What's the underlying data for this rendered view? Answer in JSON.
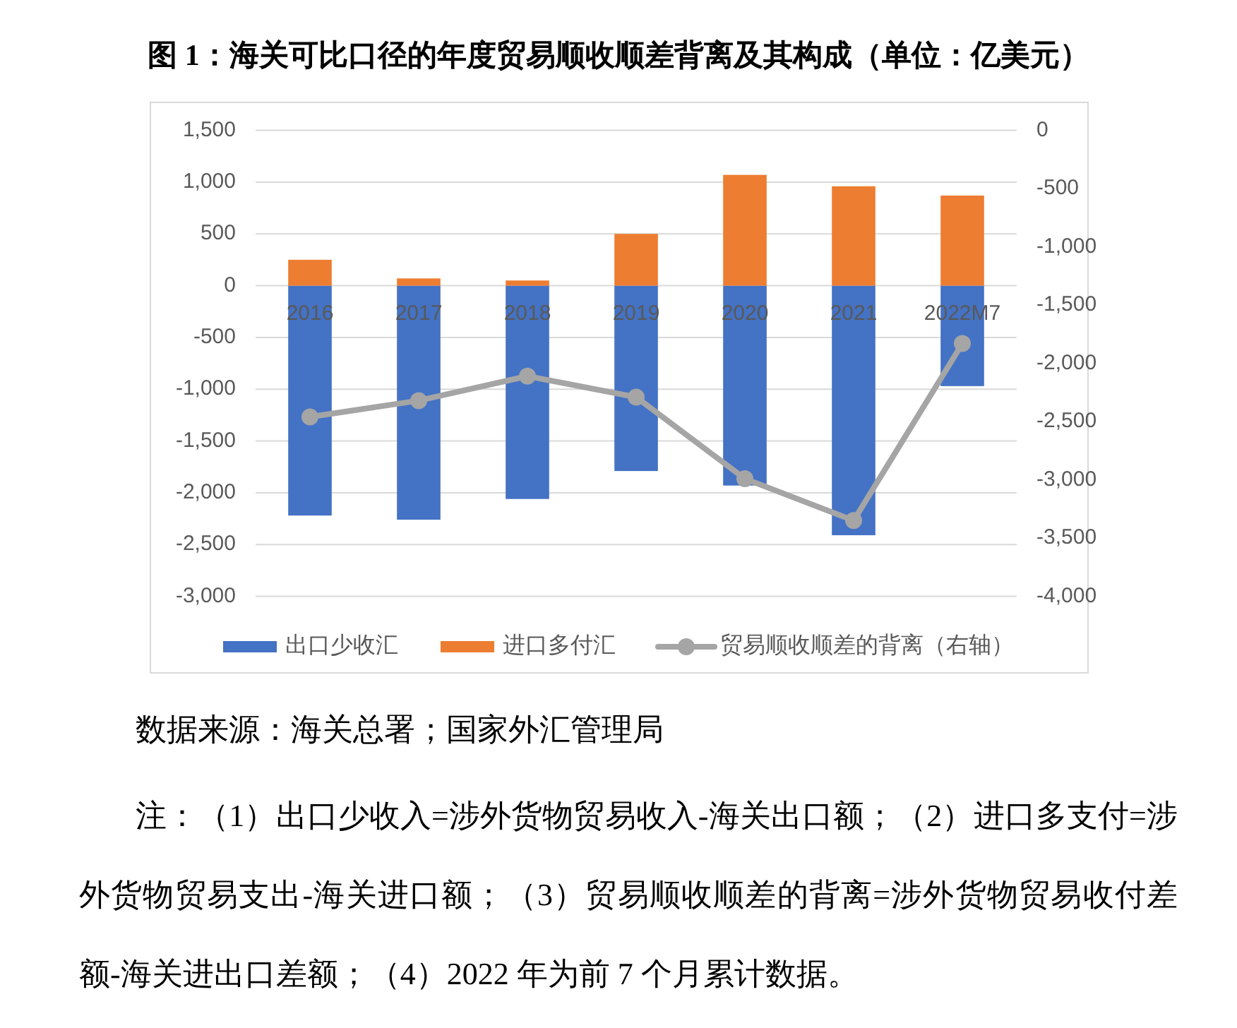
{
  "chart_data": {
    "type": "bar",
    "title": "图 1：海关可比口径的年度贸易顺收顺差背离及其构成（单位：亿美元）",
    "categories": [
      "2016",
      "2017",
      "2018",
      "2019",
      "2020",
      "2021",
      "2022M7"
    ],
    "stacked": true,
    "series": [
      {
        "name": "出口少收汇",
        "color": "#4472c4",
        "values": [
          -2220,
          -2260,
          -2060,
          -1790,
          -1930,
          -2410,
          -970
        ]
      },
      {
        "name": "进口多付汇",
        "color": "#ed7d31",
        "values": [
          250,
          70,
          50,
          500,
          1070,
          960,
          870
        ]
      },
      {
        "name": "贸易顺收顺差的背离（右轴）",
        "type": "line",
        "axis": "y2",
        "color": "#a5a5a5",
        "values": [
          -2460,
          -2320,
          -2110,
          -2290,
          -2990,
          -3350,
          -1830
        ]
      }
    ],
    "ylim": [
      -3000,
      1500
    ],
    "yticks": [
      {
        "value": 1500,
        "label": "1,500"
      },
      {
        "value": 1000,
        "label": "1,000"
      },
      500,
      0,
      -500,
      {
        "value": -1000,
        "label": "-1,000"
      },
      {
        "value": -1500,
        "label": "-1,500"
      },
      {
        "value": -2000,
        "label": "-2,000"
      },
      {
        "value": -2500,
        "label": "-2,500"
      },
      {
        "value": -3000,
        "label": "-3,000"
      }
    ],
    "y2lim": [
      -4000,
      0
    ],
    "y2ticks": [
      0,
      -500,
      {
        "value": -1000,
        "label": "-1,000"
      },
      {
        "value": -1500,
        "label": "-1,500"
      },
      {
        "value": -2000,
        "label": "-2,000"
      },
      {
        "value": -2500,
        "label": "-2,500"
      },
      {
        "value": -3000,
        "label": "-3,000"
      },
      {
        "value": -3500,
        "label": "-3,500"
      },
      {
        "value": -4000,
        "label": "-4,000"
      }
    ],
    "grid": "y",
    "legend": "bottom",
    "marker": "circle",
    "annotations": [
      "数据来源：海关总署；国家外汇管理局",
      "注：（1）出口少收入=涉外货物贸易收入-海关出口额；（2）进口多支付=涉外货物贸易支出-海关进口额；（3）贸易顺收顺差的背离=涉外货物贸易收付差额-海关进出口差额；（4）2022 年为前 7 个月累计数据。"
    ]
  }
}
